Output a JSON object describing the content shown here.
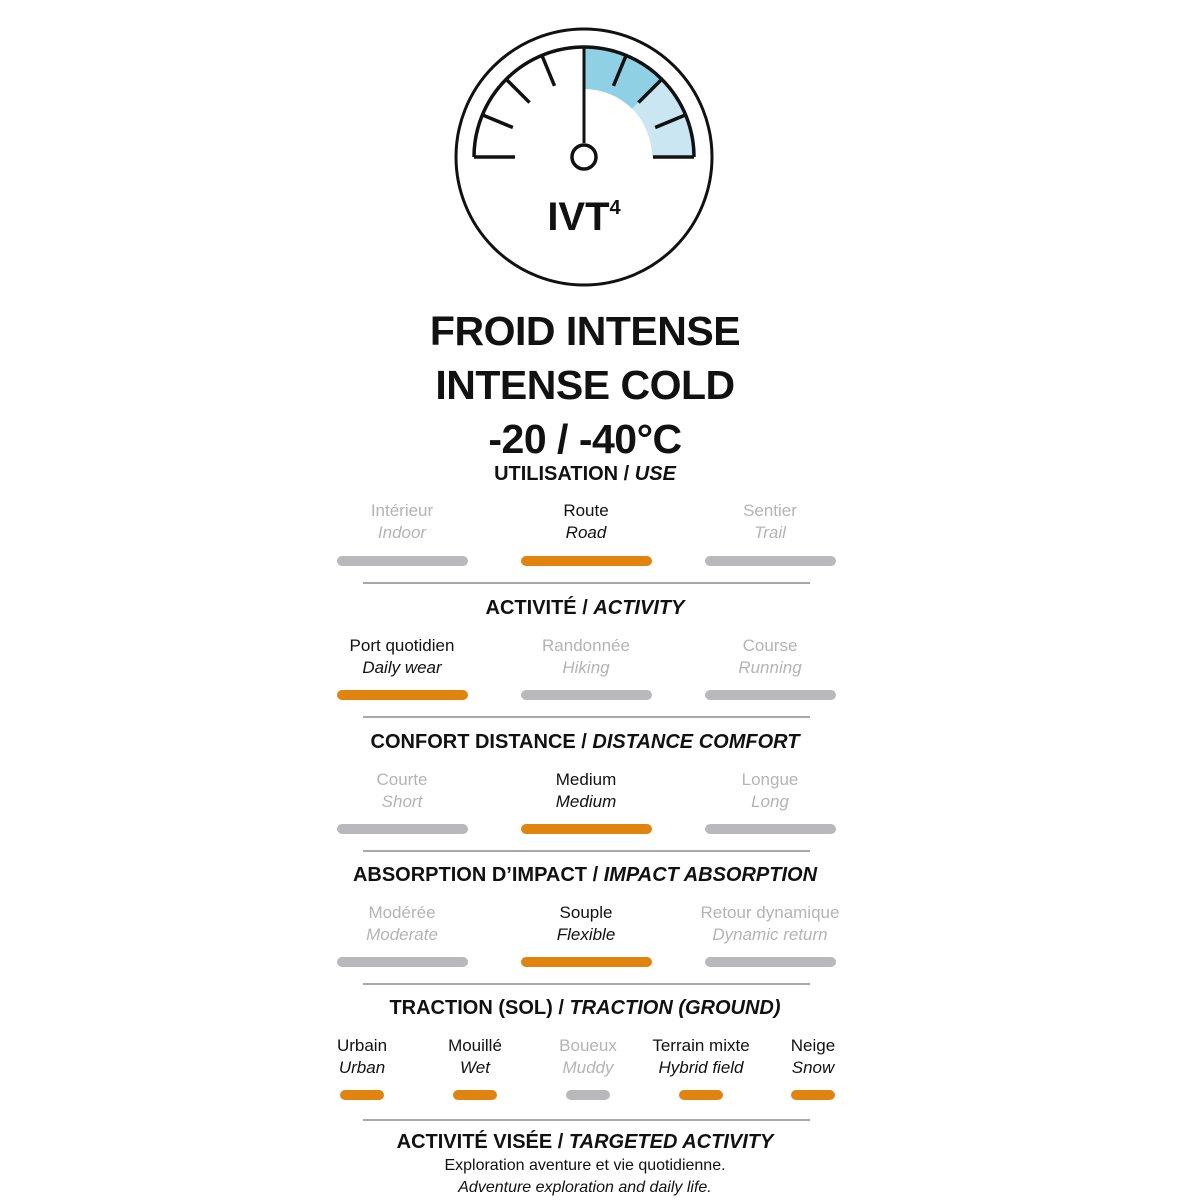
{
  "colors": {
    "active": "#e0840f",
    "inactive": "#b9b9bb",
    "gauge_dark_blue": "#8fd0e4",
    "gauge_light_blue": "#c9e6f2"
  },
  "gauge": {
    "icon": "thermometer-gauge-icon",
    "label": "IVT",
    "superscript": "4",
    "level_fraction": 1.0
  },
  "headline": {
    "fr": "FROID INTENSE",
    "en": "INTENSE COLD",
    "range": "-20 / -40°C"
  },
  "sections": [
    {
      "title_fr": "UTILISATION / ",
      "title_en": "USE",
      "options": [
        {
          "fr": "Intérieur",
          "en": "Indoor",
          "active": false
        },
        {
          "fr": "Route",
          "en": "Road",
          "active": true
        },
        {
          "fr": "Sentier",
          "en": "Trail",
          "active": false
        }
      ]
    },
    {
      "title_fr": "ACTIVITÉ / ",
      "title_en": "ACTIVITY",
      "options": [
        {
          "fr": "Port quotidien",
          "en": "Daily wear",
          "active": true
        },
        {
          "fr": "Randonnée",
          "en": "Hiking",
          "active": false
        },
        {
          "fr": "Course",
          "en": "Running",
          "active": false
        }
      ]
    },
    {
      "title_fr": "CONFORT DISTANCE / ",
      "title_en": "DISTANCE COMFORT",
      "options": [
        {
          "fr": "Courte",
          "en": "Short",
          "active": false
        },
        {
          "fr": "Medium",
          "en": "Medium",
          "active": true
        },
        {
          "fr": "Longue",
          "en": "Long",
          "active": false
        }
      ]
    },
    {
      "title_fr": "ABSORPTION D’IMPACT / ",
      "title_en": "IMPACT ABSORPTION",
      "options": [
        {
          "fr": "Modérée",
          "en": "Moderate",
          "active": false
        },
        {
          "fr": "Souple",
          "en": "Flexible",
          "active": true
        },
        {
          "fr": "Retour dynamique",
          "en": "Dynamic return",
          "active": false
        }
      ]
    },
    {
      "title_fr": "TRACTION (SOL) / ",
      "title_en": "TRACTION (GROUND)",
      "options": [
        {
          "fr": "Urbain",
          "en": "Urban",
          "active": true
        },
        {
          "fr": "Mouillé",
          "en": "Wet",
          "active": true
        },
        {
          "fr": "Boueux",
          "en": "Muddy",
          "active": false
        },
        {
          "fr": "Terrain mixte",
          "en": "Hybrid field",
          "active": true
        },
        {
          "fr": "Neige",
          "en": "Snow",
          "active": true
        }
      ]
    }
  ],
  "target": {
    "title_fr": "ACTIVITÉ VISÉE / ",
    "title_en": "TARGETED ACTIVITY",
    "desc_fr": "Exploration aventure et vie quotidienne.",
    "desc_en": "Adventure exploration and daily life."
  }
}
